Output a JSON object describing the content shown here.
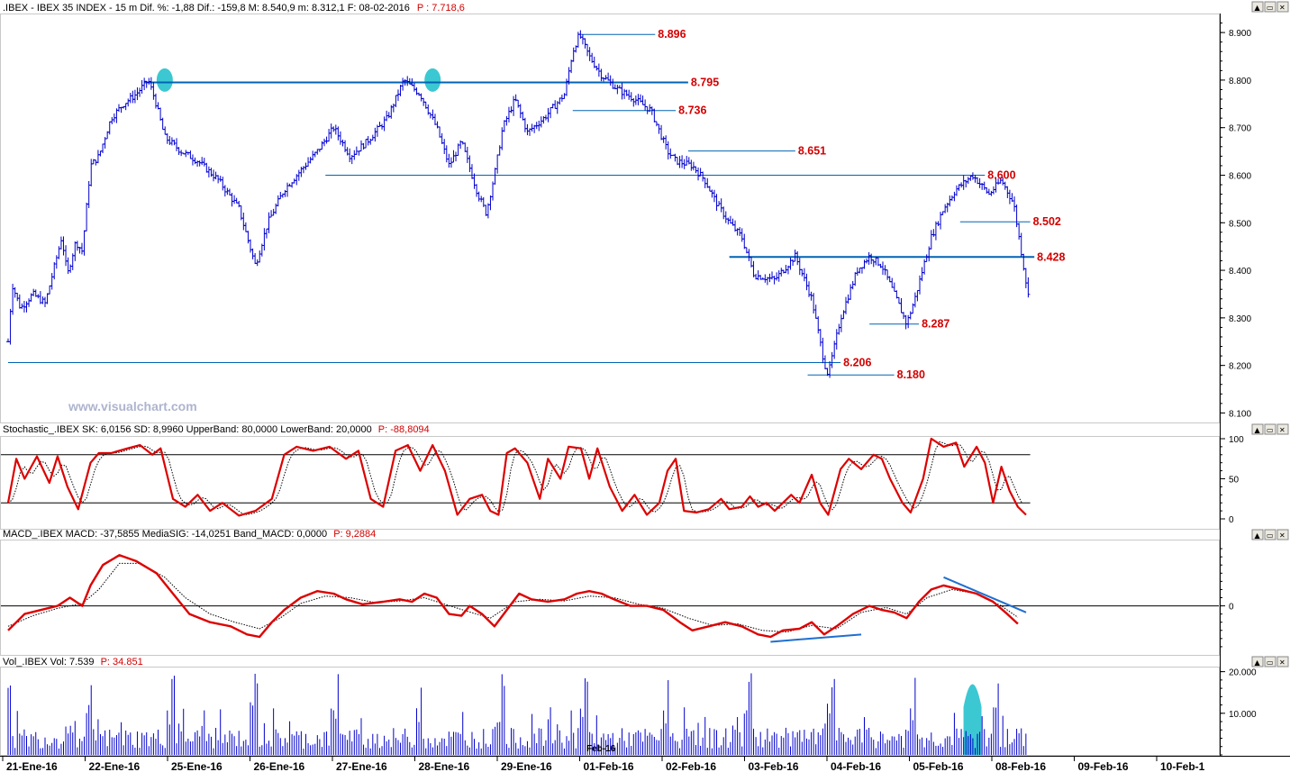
{
  "header": {
    "main_black": ".IBEX - IBEX 35 INDEX -  15 m  Dif. %: -1,88  Dif.: -159,8  M: 8.540,9  m: 8.312,1  F: 08-02-2016",
    "main_red": "P : 7.718,6",
    "stoch_label": "Stochastic_.IBEX SK: 6,0156  SD: 8,9960  UpperBand: 80,0000  LowerBand: 20,0000",
    "stoch_red": "P: -88,8094",
    "macd_label": "MACD_.IBEX MACD: -37,5855  MediaSIG: -14,0251  Band_MACD: 0,0000",
    "macd_red": "P: 9,2884",
    "vol_label": "Vol_.IBEX Vol: 7.539",
    "vol_red": "P: 34.851"
  },
  "watermark": "www.visualchart.com",
  "colors": {
    "price": "#0000cc",
    "level_line": "#0064b4",
    "level_label": "#d40000",
    "macd": "#dd0000",
    "signal": "#000000",
    "trendline": "#1f6fcf",
    "highlight": "#3cc8d2",
    "volume": "#0000cc"
  },
  "window_buttons": [
    "▲",
    "▭",
    "✕"
  ],
  "chart_data": {
    "price_panel": {
      "type": "candlestick",
      "y_ticks": [
        "8.900",
        "8.800",
        "8.700",
        "8.600",
        "8.500",
        "8.400",
        "8.300",
        "8.200",
        "8.100"
      ],
      "ylim": [
        8080,
        8940
      ],
      "series_path_date_index": [
        [
          0,
          8250
        ],
        [
          0.05,
          8370
        ],
        [
          0.15,
          8320
        ],
        [
          0.3,
          8350
        ],
        [
          0.45,
          8330
        ],
        [
          0.55,
          8400
        ],
        [
          0.65,
          8470
        ],
        [
          0.72,
          8390
        ],
        [
          0.82,
          8460
        ],
        [
          0.9,
          8440
        ],
        [
          1.0,
          8620
        ],
        [
          1.1,
          8640
        ],
        [
          1.25,
          8720
        ],
        [
          1.4,
          8750
        ],
        [
          1.55,
          8770
        ],
        [
          1.7,
          8800
        ],
        [
          1.78,
          8760
        ],
        [
          1.9,
          8680
        ],
        [
          2.1,
          8650
        ],
        [
          2.3,
          8630
        ],
        [
          2.55,
          8590
        ],
        [
          2.8,
          8530
        ],
        [
          3.0,
          8410
        ],
        [
          3.15,
          8500
        ],
        [
          3.35,
          8570
        ],
        [
          3.55,
          8610
        ],
        [
          3.75,
          8650
        ],
        [
          3.95,
          8700
        ],
        [
          4.15,
          8640
        ],
        [
          4.35,
          8670
        ],
        [
          4.6,
          8720
        ],
        [
          4.8,
          8800
        ],
        [
          5.0,
          8770
        ],
        [
          5.2,
          8700
        ],
        [
          5.35,
          8620
        ],
        [
          5.5,
          8670
        ],
        [
          5.7,
          8560
        ],
        [
          5.8,
          8520
        ],
        [
          5.9,
          8600
        ],
        [
          6.0,
          8700
        ],
        [
          6.15,
          8760
        ],
        [
          6.3,
          8690
        ],
        [
          6.5,
          8720
        ],
        [
          6.75,
          8770
        ],
        [
          6.85,
          8860
        ],
        [
          6.93,
          8896
        ],
        [
          7.05,
          8850
        ],
        [
          7.2,
          8810
        ],
        [
          7.4,
          8780
        ],
        [
          7.6,
          8760
        ],
        [
          7.8,
          8736
        ],
        [
          8.0,
          8650
        ],
        [
          8.1,
          8630
        ],
        [
          8.3,
          8620
        ],
        [
          8.45,
          8590
        ],
        [
          8.6,
          8540
        ],
        [
          8.75,
          8500
        ],
        [
          8.9,
          8470
        ],
        [
          9.05,
          8390
        ],
        [
          9.3,
          8380
        ],
        [
          9.55,
          8430
        ],
        [
          9.75,
          8340
        ],
        [
          9.9,
          8206
        ],
        [
          9.95,
          8180
        ],
        [
          10.1,
          8300
        ],
        [
          10.3,
          8400
        ],
        [
          10.45,
          8430
        ],
        [
          10.6,
          8410
        ],
        [
          10.8,
          8330
        ],
        [
          10.9,
          8287
        ],
        [
          11.0,
          8340
        ],
        [
          11.2,
          8470
        ],
        [
          11.35,
          8530
        ],
        [
          11.5,
          8570
        ],
        [
          11.7,
          8600
        ],
        [
          11.9,
          8560
        ],
        [
          12.05,
          8590
        ],
        [
          12.2,
          8540
        ],
        [
          12.3,
          8430
        ],
        [
          12.4,
          8320
        ]
      ],
      "levels": [
        {
          "label": "8.896",
          "value": 8896,
          "x_range": [
            6.95,
            7.85
          ]
        },
        {
          "label": "8.795",
          "value": 8795,
          "x_range": [
            1.65,
            8.25
          ]
        },
        {
          "label": "8.736",
          "value": 8736,
          "x_range": [
            6.85,
            8.1
          ]
        },
        {
          "label": "8.651",
          "value": 8651,
          "x_range": [
            8.25,
            9.55
          ]
        },
        {
          "label": "8.600",
          "value": 8600,
          "x_range": [
            3.85,
            11.85
          ]
        },
        {
          "label": "8.502",
          "value": 8502,
          "x_range": [
            11.55,
            12.4
          ]
        },
        {
          "label": "8.428",
          "value": 8428,
          "x_range": [
            8.75,
            12.45
          ]
        },
        {
          "label": "8.287",
          "value": 8287,
          "x_range": [
            10.45,
            11.05
          ]
        },
        {
          "label": "8.206",
          "value": 8206,
          "x_range": [
            0.0,
            10.1
          ]
        },
        {
          "label": "8.180",
          "value": 8180,
          "x_range": [
            9.7,
            10.75
          ]
        }
      ],
      "highlights": [
        {
          "x_index": 1.9,
          "value": 8800
        },
        {
          "x_index": 5.15,
          "value": 8800
        }
      ]
    },
    "stochastic_panel": {
      "type": "line",
      "y_ticks": [
        "100",
        "50",
        "0"
      ],
      "ylim": [
        0,
        100
      ],
      "bands": [
        80,
        20
      ],
      "sk": [
        [
          0,
          20
        ],
        [
          0.1,
          75
        ],
        [
          0.2,
          50
        ],
        [
          0.35,
          78
        ],
        [
          0.5,
          45
        ],
        [
          0.6,
          78
        ],
        [
          0.72,
          40
        ],
        [
          0.85,
          12
        ],
        [
          1.0,
          70
        ],
        [
          1.1,
          82
        ],
        [
          1.25,
          82
        ],
        [
          1.45,
          88
        ],
        [
          1.6,
          92
        ],
        [
          1.75,
          80
        ],
        [
          1.85,
          88
        ],
        [
          2.0,
          25
        ],
        [
          2.15,
          15
        ],
        [
          2.3,
          30
        ],
        [
          2.45,
          10
        ],
        [
          2.6,
          20
        ],
        [
          2.8,
          4
        ],
        [
          3.0,
          10
        ],
        [
          3.2,
          25
        ],
        [
          3.35,
          80
        ],
        [
          3.5,
          90
        ],
        [
          3.7,
          85
        ],
        [
          3.9,
          90
        ],
        [
          4.1,
          75
        ],
        [
          4.25,
          85
        ],
        [
          4.4,
          25
        ],
        [
          4.55,
          15
        ],
        [
          4.7,
          85
        ],
        [
          4.85,
          92
        ],
        [
          5.0,
          60
        ],
        [
          5.15,
          92
        ],
        [
          5.3,
          60
        ],
        [
          5.45,
          5
        ],
        [
          5.6,
          25
        ],
        [
          5.75,
          30
        ],
        [
          5.85,
          10
        ],
        [
          5.95,
          5
        ],
        [
          6.05,
          82
        ],
        [
          6.15,
          88
        ],
        [
          6.3,
          70
        ],
        [
          6.45,
          25
        ],
        [
          6.55,
          75
        ],
        [
          6.7,
          50
        ],
        [
          6.8,
          90
        ],
        [
          6.95,
          88
        ],
        [
          7.05,
          50
        ],
        [
          7.15,
          88
        ],
        [
          7.3,
          40
        ],
        [
          7.45,
          10
        ],
        [
          7.6,
          30
        ],
        [
          7.75,
          5
        ],
        [
          7.9,
          20
        ],
        [
          8.0,
          60
        ],
        [
          8.1,
          75
        ],
        [
          8.2,
          10
        ],
        [
          8.35,
          8
        ],
        [
          8.5,
          12
        ],
        [
          8.65,
          25
        ],
        [
          8.75,
          12
        ],
        [
          8.9,
          15
        ],
        [
          9.0,
          28
        ],
        [
          9.1,
          15
        ],
        [
          9.2,
          20
        ],
        [
          9.3,
          10
        ],
        [
          9.5,
          30
        ],
        [
          9.6,
          20
        ],
        [
          9.75,
          55
        ],
        [
          9.85,
          20
        ],
        [
          9.95,
          5
        ],
        [
          10.1,
          62
        ],
        [
          10.2,
          75
        ],
        [
          10.35,
          62
        ],
        [
          10.5,
          80
        ],
        [
          10.6,
          75
        ],
        [
          10.7,
          50
        ],
        [
          10.85,
          20
        ],
        [
          10.95,
          8
        ],
        [
          11.1,
          50
        ],
        [
          11.2,
          100
        ],
        [
          11.35,
          90
        ],
        [
          11.5,
          95
        ],
        [
          11.6,
          65
        ],
        [
          11.75,
          90
        ],
        [
          11.85,
          70
        ],
        [
          11.95,
          20
        ],
        [
          12.05,
          65
        ],
        [
          12.15,
          35
        ],
        [
          12.25,
          15
        ],
        [
          12.35,
          5
        ]
      ]
    },
    "macd_panel": {
      "type": "line",
      "y_ticks": [
        "0"
      ],
      "ylim": [
        -60,
        80
      ],
      "zero_line": 0,
      "macd": [
        [
          0,
          -30
        ],
        [
          0.2,
          -10
        ],
        [
          0.4,
          -5
        ],
        [
          0.6,
          0
        ],
        [
          0.75,
          10
        ],
        [
          0.9,
          0
        ],
        [
          1.0,
          25
        ],
        [
          1.15,
          50
        ],
        [
          1.35,
          62
        ],
        [
          1.55,
          55
        ],
        [
          1.8,
          40
        ],
        [
          2.0,
          15
        ],
        [
          2.2,
          -10
        ],
        [
          2.45,
          -20
        ],
        [
          2.7,
          -25
        ],
        [
          2.9,
          -35
        ],
        [
          3.05,
          -38
        ],
        [
          3.2,
          -20
        ],
        [
          3.35,
          -5
        ],
        [
          3.55,
          10
        ],
        [
          3.75,
          18
        ],
        [
          3.95,
          15
        ],
        [
          4.1,
          8
        ],
        [
          4.3,
          2
        ],
        [
          4.55,
          5
        ],
        [
          4.75,
          8
        ],
        [
          4.9,
          5
        ],
        [
          5.05,
          15
        ],
        [
          5.2,
          10
        ],
        [
          5.35,
          -10
        ],
        [
          5.5,
          -12
        ],
        [
          5.6,
          0
        ],
        [
          5.75,
          -10
        ],
        [
          5.9,
          -25
        ],
        [
          6.05,
          -5
        ],
        [
          6.2,
          15
        ],
        [
          6.35,
          8
        ],
        [
          6.55,
          5
        ],
        [
          6.75,
          8
        ],
        [
          6.9,
          15
        ],
        [
          7.05,
          18
        ],
        [
          7.2,
          15
        ],
        [
          7.35,
          8
        ],
        [
          7.55,
          0
        ],
        [
          7.75,
          0
        ],
        [
          7.95,
          -5
        ],
        [
          8.15,
          -20
        ],
        [
          8.3,
          -30
        ],
        [
          8.5,
          -25
        ],
        [
          8.7,
          -20
        ],
        [
          8.9,
          -25
        ],
        [
          9.1,
          -35
        ],
        [
          9.25,
          -38
        ],
        [
          9.4,
          -30
        ],
        [
          9.6,
          -28
        ],
        [
          9.75,
          -20
        ],
        [
          9.9,
          -35
        ],
        [
          10.05,
          -25
        ],
        [
          10.25,
          -10
        ],
        [
          10.45,
          0
        ],
        [
          10.6,
          -5
        ],
        [
          10.75,
          -8
        ],
        [
          10.9,
          -15
        ],
        [
          11.05,
          5
        ],
        [
          11.2,
          20
        ],
        [
          11.35,
          25
        ],
        [
          11.55,
          20
        ],
        [
          11.75,
          15
        ],
        [
          11.95,
          5
        ],
        [
          12.1,
          -8
        ],
        [
          12.25,
          -22
        ]
      ],
      "signal": [
        [
          0,
          -25
        ],
        [
          0.3,
          -12
        ],
        [
          0.6,
          -3
        ],
        [
          0.9,
          3
        ],
        [
          1.1,
          20
        ],
        [
          1.35,
          52
        ],
        [
          1.6,
          52
        ],
        [
          1.9,
          35
        ],
        [
          2.15,
          10
        ],
        [
          2.45,
          -10
        ],
        [
          2.75,
          -20
        ],
        [
          3.05,
          -28
        ],
        [
          3.3,
          -15
        ],
        [
          3.55,
          3
        ],
        [
          3.85,
          12
        ],
        [
          4.15,
          10
        ],
        [
          4.45,
          4
        ],
        [
          4.75,
          6
        ],
        [
          5.05,
          10
        ],
        [
          5.3,
          2
        ],
        [
          5.55,
          -6
        ],
        [
          5.85,
          -15
        ],
        [
          6.15,
          5
        ],
        [
          6.45,
          8
        ],
        [
          6.75,
          6
        ],
        [
          7.05,
          12
        ],
        [
          7.35,
          10
        ],
        [
          7.65,
          2
        ],
        [
          7.95,
          -3
        ],
        [
          8.25,
          -15
        ],
        [
          8.55,
          -24
        ],
        [
          8.85,
          -22
        ],
        [
          9.15,
          -30
        ],
        [
          9.45,
          -32
        ],
        [
          9.75,
          -24
        ],
        [
          10.05,
          -28
        ],
        [
          10.35,
          -8
        ],
        [
          10.65,
          -2
        ],
        [
          10.9,
          -10
        ],
        [
          11.15,
          10
        ],
        [
          11.45,
          20
        ],
        [
          11.75,
          15
        ],
        [
          12.05,
          0
        ],
        [
          12.25,
          -14
        ]
      ],
      "trendlines": [
        {
          "from": [
            9.25,
            -44
          ],
          "to": [
            10.35,
            -35
          ]
        },
        {
          "from": [
            11.35,
            35
          ],
          "to": [
            12.35,
            -8
          ]
        }
      ]
    },
    "volume_panel": {
      "type": "bar",
      "y_ticks": [
        "20.000",
        "10.000"
      ],
      "ylim": [
        0,
        21000
      ],
      "highlight_x_index": 11.7
    },
    "x_axis": {
      "tick_labels": [
        "21-Ene-16",
        "22-Ene-16",
        "25-Ene-16",
        "26-Ene-16",
        "27-Ene-16",
        "28-Ene-16",
        "29-Ene-16",
        "01-Feb-16",
        "02-Feb-16",
        "03-Feb-16",
        "04-Feb-16",
        "05-Feb-16",
        "08-Feb-16",
        "09-Feb-16",
        "10-Feb-1"
      ],
      "overlay_label": "Feb-16"
    }
  }
}
